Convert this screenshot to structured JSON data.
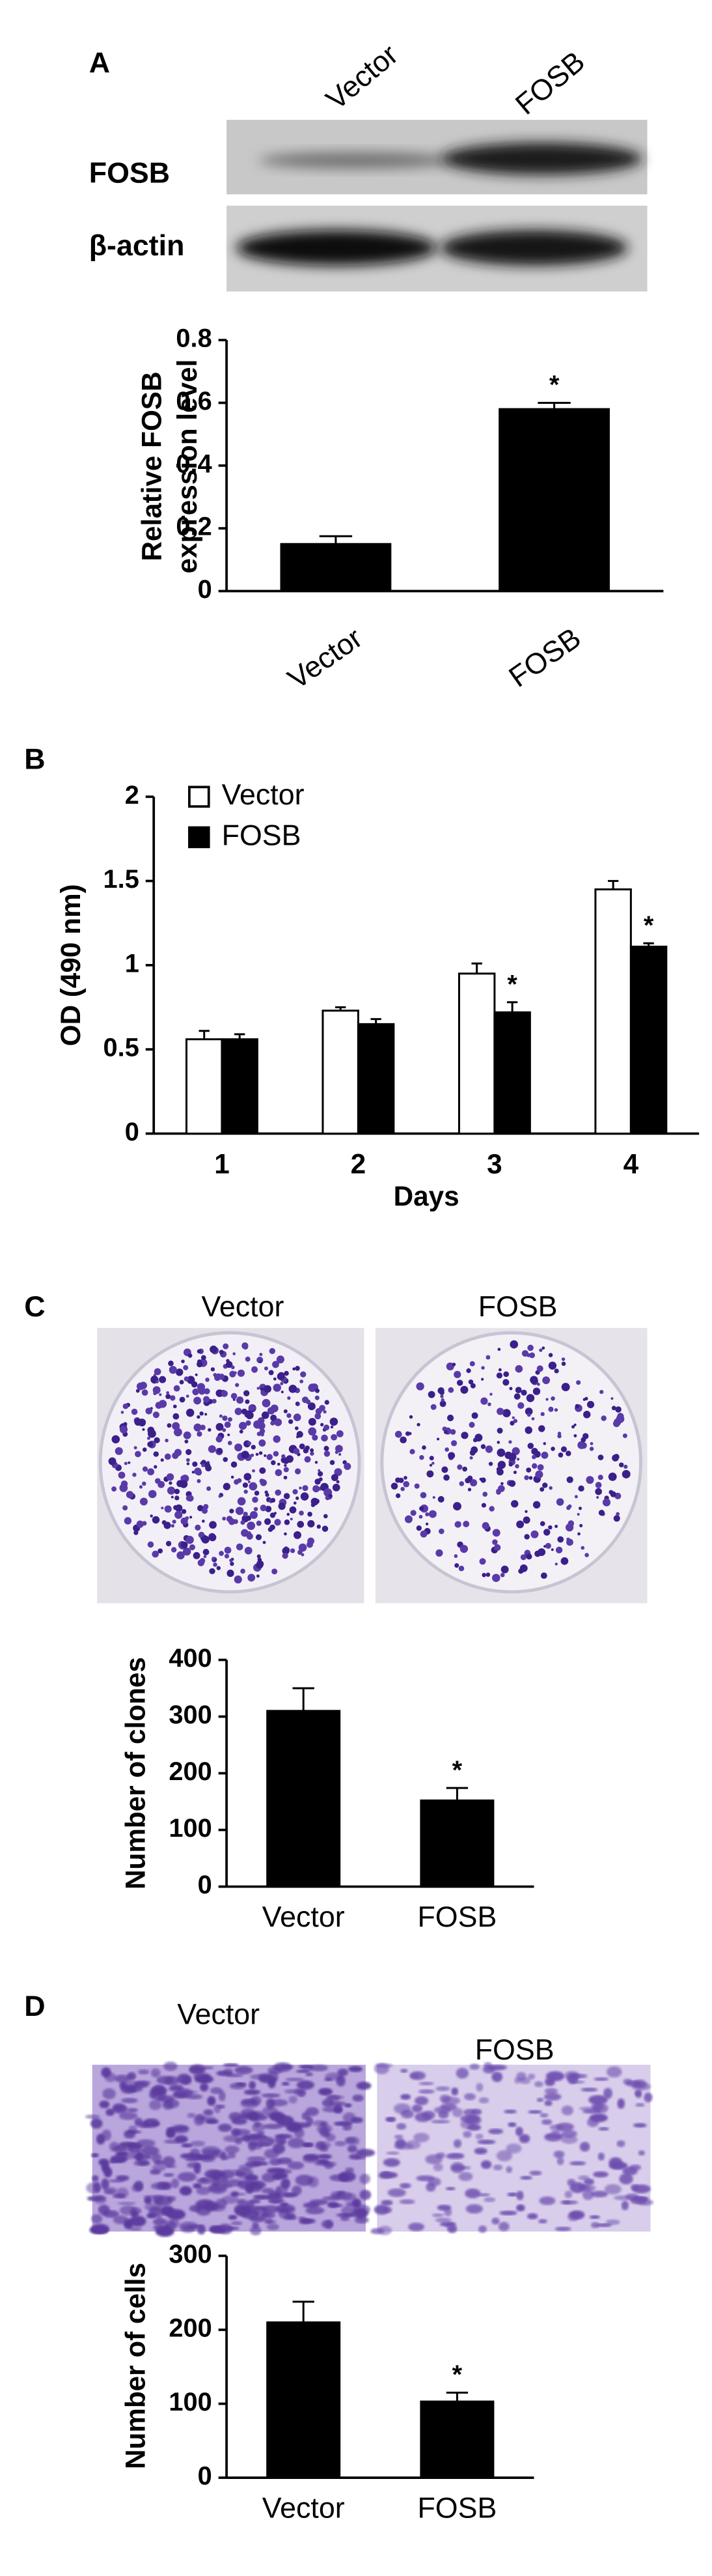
{
  "figure": {
    "panel_labels": [
      "A",
      "B",
      "C",
      "D"
    ],
    "blot": {
      "lanes": [
        "Vector",
        "FOSB"
      ],
      "rows": [
        "FOSB",
        "β-actin"
      ]
    },
    "colony_images": {
      "labels": [
        "Vector",
        "FOSB"
      ]
    },
    "invasion_images": {
      "labels": [
        "Vector",
        "FOSB"
      ]
    }
  },
  "chart_data": [
    {
      "type": "bar",
      "ylabel": [
        "Relative FOSB",
        "expression level"
      ],
      "categories": [
        "Vector",
        "FOSB"
      ],
      "values": [
        0.15,
        0.58
      ],
      "errors": [
        0.025,
        0.02
      ],
      "annotations": [
        null,
        "*"
      ],
      "color": "#000000",
      "ylim": [
        0,
        0.8
      ],
      "yticks": [
        0,
        0.2,
        0.4,
        0.6,
        0.8
      ]
    },
    {
      "type": "bar",
      "ylabel": [
        "OD (490 nm)"
      ],
      "xlabel": "Days",
      "categories": [
        "1",
        "2",
        "3",
        "4"
      ],
      "series": [
        {
          "name": "Vector",
          "color": "#ffffff",
          "values": [
            0.56,
            0.73,
            0.95,
            1.45
          ],
          "errors": [
            0.05,
            0.02,
            0.06,
            0.05
          ],
          "annotations": [
            null,
            null,
            null,
            null
          ]
        },
        {
          "name": "FOSB",
          "color": "#000000",
          "values": [
            0.56,
            0.65,
            0.72,
            1.11
          ],
          "errors": [
            0.03,
            0.03,
            0.06,
            0.02
          ],
          "annotations": [
            null,
            null,
            "*",
            "*"
          ]
        }
      ],
      "legend": "top-left",
      "ylim": [
        0,
        2
      ],
      "yticks": [
        0,
        0.5,
        1,
        1.5,
        2
      ]
    },
    {
      "type": "bar",
      "ylabel": [
        "Number of clones"
      ],
      "categories": [
        "Vector",
        "FOSB"
      ],
      "values": [
        310,
        152
      ],
      "errors": [
        40,
        22
      ],
      "annotations": [
        null,
        "*"
      ],
      "color": "#000000",
      "ylim": [
        0,
        400
      ],
      "yticks": [
        0,
        100,
        200,
        300,
        400
      ]
    },
    {
      "type": "bar",
      "ylabel": [
        "Number of cells"
      ],
      "categories": [
        "Vector",
        "FOSB"
      ],
      "values": [
        210,
        103
      ],
      "errors": [
        28,
        12
      ],
      "annotations": [
        null,
        "*"
      ],
      "color": "#000000",
      "ylim": [
        0,
        300
      ],
      "yticks": [
        0,
        100,
        200,
        300
      ]
    }
  ]
}
